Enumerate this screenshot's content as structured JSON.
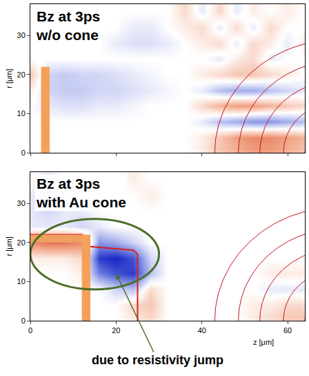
{
  "chart_data": [
    {
      "type": "heatmap",
      "title_lines": [
        "Bz at 3ps",
        "w/o cone"
      ],
      "y_label": "r [μm]",
      "tick_labels": "y",
      "grid": false,
      "xlim": [
        0,
        64
      ],
      "ylim": [
        0,
        38
      ],
      "xticks": [
        0,
        20,
        40,
        60
      ],
      "yticks": [
        0,
        10,
        20,
        30
      ],
      "zlim": [
        -1,
        1
      ],
      "x": [
        0,
        4,
        8,
        12,
        16,
        20,
        24,
        28,
        32,
        36,
        40,
        44,
        48,
        52,
        56,
        60,
        64
      ],
      "y": [
        0,
        4,
        8,
        12,
        16,
        20,
        24,
        28,
        32,
        36
      ],
      "cells": [
        [
          0,
          0,
          0,
          0,
          0,
          0,
          0,
          0,
          0,
          0,
          0.1,
          0.3,
          0.4,
          0.5,
          0.5,
          0.4,
          0.3
        ],
        [
          0,
          0,
          0,
          0,
          0,
          0,
          0,
          0,
          0,
          0,
          0.1,
          0.3,
          0.5,
          0.6,
          0.6,
          0.5,
          0.4
        ],
        [
          0,
          0,
          0,
          0,
          0,
          0,
          0,
          0,
          0,
          0,
          -0.1,
          -0.3,
          -0.4,
          -0.5,
          -0.5,
          -0.4,
          -0.3
        ],
        [
          0,
          -0.1,
          -0.15,
          -0.15,
          -0.1,
          -0.1,
          -0.05,
          0,
          0,
          0,
          0.2,
          0.4,
          0.5,
          0.5,
          0.4,
          0.3,
          0.2
        ],
        [
          0.1,
          -0.2,
          -0.25,
          -0.25,
          -0.2,
          -0.2,
          -0.15,
          -0.1,
          -0.05,
          0,
          -0.1,
          -0.3,
          -0.4,
          -0.4,
          -0.3,
          -0.2,
          -0.1
        ],
        [
          0.3,
          -0.2,
          -0.25,
          -0.2,
          -0.2,
          -0.15,
          -0.1,
          -0.05,
          0,
          0,
          0.1,
          0.2,
          0.3,
          0.3,
          0.2,
          0.1,
          0
        ],
        [
          0,
          0,
          0,
          0,
          0,
          0,
          0,
          0,
          0,
          0,
          0,
          -0.1,
          0.1,
          0.2,
          -0.1,
          0,
          0
        ],
        [
          0,
          0,
          0,
          0,
          0,
          -0.1,
          -0.15,
          -0.15,
          -0.1,
          0,
          0.1,
          0.2,
          -0.1,
          0.2,
          0.1,
          -0.1,
          0.1
        ],
        [
          0,
          0,
          0,
          0,
          0,
          0,
          -0.1,
          -0.1,
          0,
          0.1,
          0.2,
          -0.1,
          0.2,
          -0.1,
          0.2,
          0,
          0
        ],
        [
          0,
          0,
          0,
          0,
          0,
          0,
          0,
          0,
          0,
          0.2,
          -0.1,
          0.2,
          -0.1,
          0.1,
          0,
          0.1,
          0
        ]
      ],
      "target": {
        "z": [
          2.5,
          4.5
        ],
        "r": [
          0,
          22
        ]
      },
      "wavefronts": {
        "center_z": 72,
        "center_r": 0,
        "radii": [
          29,
          23.5,
          18.5,
          13,
          8
        ]
      }
    },
    {
      "type": "heatmap",
      "title_lines": [
        "Bz at 3ps",
        "with Au cone"
      ],
      "x_label": "z [μm]",
      "y_label": "r [μm]",
      "grid": false,
      "xlim": [
        0,
        64
      ],
      "ylim": [
        0,
        38
      ],
      "xticks": [
        0,
        20,
        40,
        60
      ],
      "yticks": [
        0,
        10,
        20,
        30
      ],
      "zlim": [
        -1,
        1
      ],
      "x": [
        0,
        4,
        8,
        12,
        16,
        20,
        24,
        28,
        32,
        36,
        40,
        44,
        48,
        52,
        56,
        60,
        64
      ],
      "y": [
        0,
        4,
        8,
        12,
        16,
        20,
        24,
        28,
        32,
        36
      ],
      "cells": [
        [
          0,
          0,
          0,
          0,
          0,
          0,
          0.1,
          0.2,
          0,
          0,
          0,
          0,
          0,
          0.1,
          0.2,
          0.3,
          0.3
        ],
        [
          0,
          0,
          0,
          0,
          0,
          0,
          0.2,
          0.3,
          0,
          0,
          0,
          0,
          0,
          0.1,
          0.1,
          0.2,
          0.2
        ],
        [
          0,
          0,
          0,
          0,
          0,
          -0.2,
          -0.3,
          0.2,
          0,
          0,
          0,
          0,
          0,
          0,
          -0.1,
          -0.1,
          -0.1
        ],
        [
          0,
          0,
          0,
          0.1,
          -0.6,
          -0.8,
          -0.9,
          -0.3,
          0,
          0,
          0,
          0,
          0,
          0,
          0.1,
          0.1,
          0.1
        ],
        [
          0.1,
          0.1,
          0.1,
          0.2,
          -0.9,
          -1,
          -0.8,
          -0.2,
          0,
          0,
          0,
          0,
          0,
          0,
          0,
          0,
          0
        ],
        [
          0.6,
          0.7,
          0.7,
          0.6,
          -0.5,
          -0.4,
          -0.2,
          0,
          0,
          0,
          0,
          0,
          0,
          0,
          0,
          0,
          0
        ],
        [
          -0.1,
          -0.1,
          -0.1,
          -0.2,
          -0.1,
          0,
          0,
          0,
          0,
          0,
          0,
          0,
          0,
          0,
          0,
          0,
          0
        ],
        [
          -0.1,
          -0.2,
          -0.1,
          -0.1,
          0,
          0,
          0,
          0,
          0,
          0,
          0,
          0,
          0,
          0,
          0,
          0,
          0
        ],
        [
          -0.1,
          -0.15,
          -0.1,
          0,
          0,
          0,
          0,
          0.1,
          0,
          0,
          0,
          0,
          0,
          0,
          0,
          0,
          0
        ],
        [
          0,
          -0.1,
          0,
          0,
          0,
          0,
          0.1,
          0,
          0,
          0,
          0,
          0,
          0,
          0,
          0,
          0,
          0
        ]
      ],
      "target": {
        "z": [
          12,
          14
        ],
        "r": [
          0,
          22
        ]
      },
      "cone_wall": {
        "z": [
          0,
          12
        ],
        "r": [
          20,
          22
        ]
      },
      "cone_outline": {
        "z": [
          0,
          12,
          13,
          24,
          25,
          25
        ],
        "r": [
          22,
          22,
          19,
          18,
          17,
          0
        ]
      },
      "highlight": {
        "z": [
          0,
          30
        ],
        "r": [
          8,
          26
        ]
      },
      "wavefronts": {
        "center_z": 72,
        "center_r": 0,
        "radii": [
          29,
          23.5,
          18.5,
          13,
          8
        ]
      },
      "annotations": [
        {
          "text": "due to resistivity jump",
          "z": 20,
          "r": 12
        }
      ]
    }
  ]
}
